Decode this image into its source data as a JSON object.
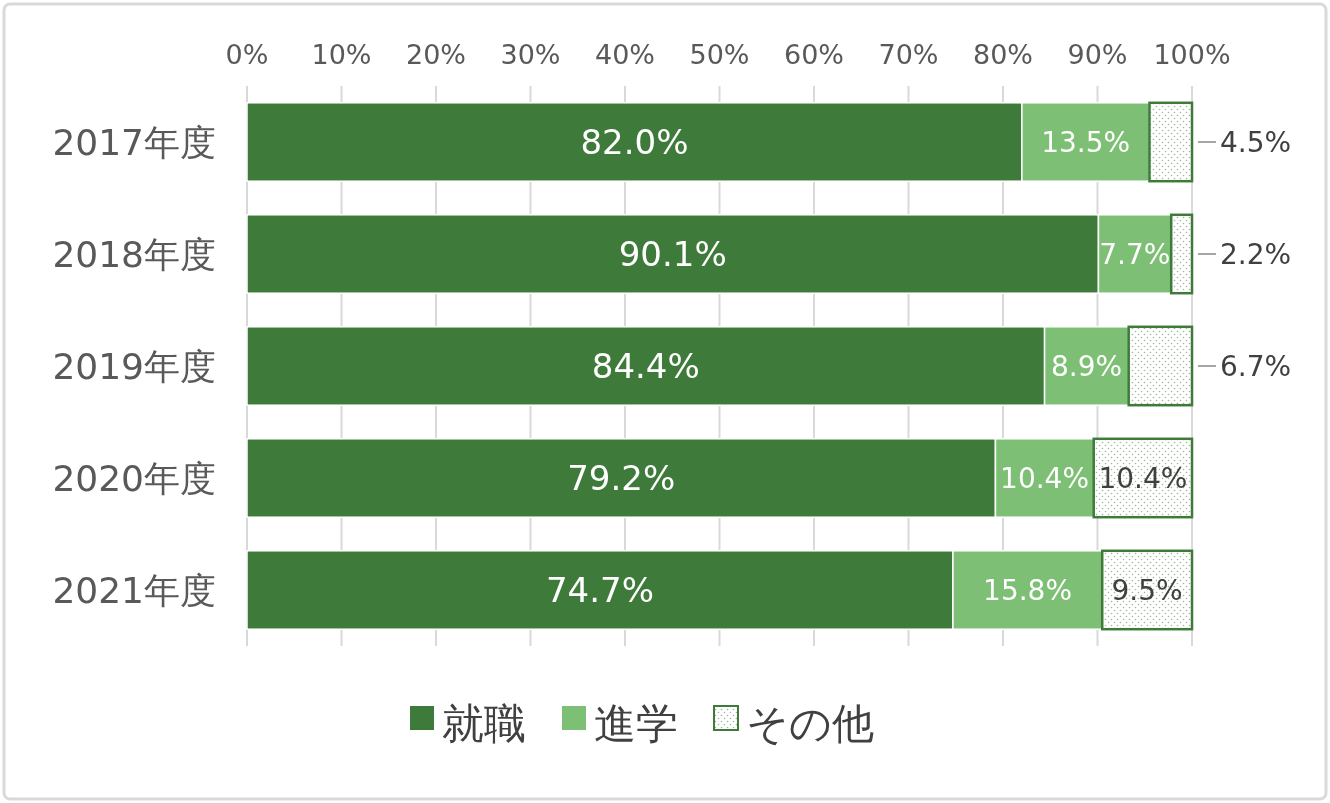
{
  "chart_data": {
    "type": "bar",
    "orientation": "horizontal",
    "stacked": true,
    "categories": [
      "2017年度",
      "2018年度",
      "2019年度",
      "2020年度",
      "2021年度"
    ],
    "series": [
      {
        "name": "就職",
        "color": "#3e7b3a",
        "values": [
          82.0,
          90.1,
          84.4,
          79.2,
          74.7
        ],
        "value_labels": [
          "82.0%",
          "90.1%",
          "84.4%",
          "79.2%",
          "74.7%"
        ]
      },
      {
        "name": "進学",
        "color": "#7dbf74",
        "values": [
          13.5,
          7.7,
          8.9,
          10.4,
          15.8
        ],
        "value_labels": [
          "13.5%",
          "7.7%",
          "8.9%",
          "10.4%",
          "15.8%"
        ]
      },
      {
        "name": "その他",
        "color": "#3e7b3a",
        "values": [
          4.5,
          2.2,
          6.7,
          10.4,
          9.5
        ],
        "value_labels": [
          "4.5%",
          "2.2%",
          "6.7%",
          "10.4%",
          "9.5%"
        ]
      }
    ],
    "xlim": [
      0,
      100
    ],
    "xticks": [
      {
        "value": 0,
        "label": "0%"
      },
      {
        "value": 10,
        "label": "10%"
      },
      {
        "value": 20,
        "label": "20%"
      },
      {
        "value": 30,
        "label": "30%"
      },
      {
        "value": 40,
        "label": "40%"
      },
      {
        "value": 50,
        "label": "50%"
      },
      {
        "value": 60,
        "label": "60%"
      },
      {
        "value": 70,
        "label": "70%"
      },
      {
        "value": 80,
        "label": "80%"
      },
      {
        "value": 90,
        "label": "90%"
      },
      {
        "value": 100,
        "label": "100%"
      }
    ],
    "grid": "x",
    "legend": "bottom"
  }
}
